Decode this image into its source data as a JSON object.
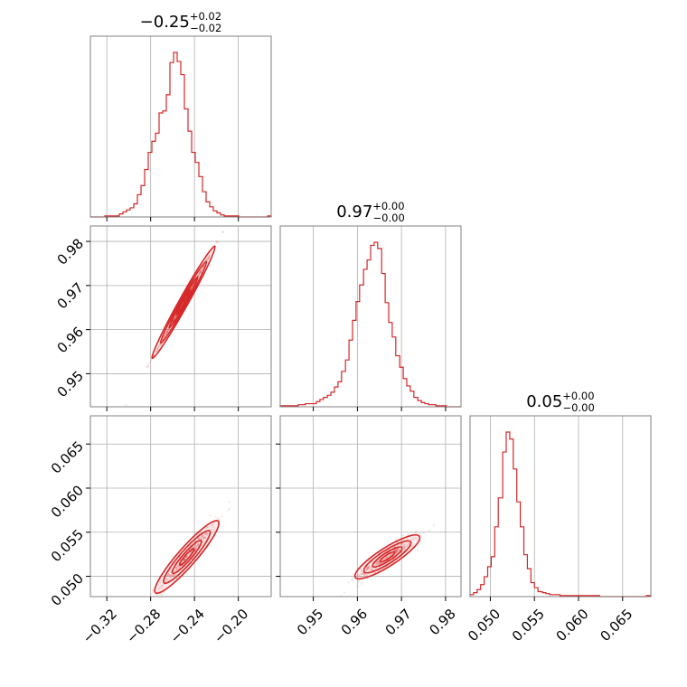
{
  "chart_data": {
    "type": "corner",
    "color": "#d62728",
    "parameters": [
      {
        "median": -0.25,
        "plus": 0.02,
        "minus": 0.02,
        "title_main": "−0.25",
        "title_sup": "+0.02",
        "title_sub": "−0.02",
        "range": [
          -0.335,
          -0.17
        ],
        "ticks": [
          -0.32,
          -0.28,
          -0.24,
          -0.2
        ],
        "tick_labels": [
          "−0.32",
          "−0.28",
          "−0.24",
          "−0.20"
        ],
        "sigma": 0.013
      },
      {
        "median": 0.966,
        "plus": 0.0,
        "minus": 0.0,
        "title_main": "0.97",
        "title_sup": "+0.00",
        "title_sub": "−0.00",
        "range": [
          0.9425,
          0.9835
        ],
        "ticks": [
          0.95,
          0.96,
          0.97,
          0.98
        ],
        "tick_labels": [
          "0.95",
          "0.96",
          "0.97",
          "0.98"
        ],
        "sigma": 0.0033
      },
      {
        "median": 0.0522,
        "plus": 0.0,
        "minus": 0.0,
        "title_main": "0.05",
        "title_sup": "+0.00",
        "title_sub": "−0.00",
        "range": [
          0.0477,
          0.0682
        ],
        "ticks": [
          0.05,
          0.055,
          0.06,
          0.065
        ],
        "tick_labels": [
          "0.050",
          "0.055",
          "0.060",
          "0.065"
        ],
        "sigma": 0.0011
      }
    ],
    "hist1d": [
      {
        "bins": [
          -0.335,
          -0.3317,
          -0.3284,
          -0.3251,
          -0.3218,
          -0.3185,
          -0.3152,
          -0.3119,
          -0.3086,
          -0.3053,
          -0.302,
          -0.2987,
          -0.2954,
          -0.2921,
          -0.2888,
          -0.2855,
          -0.2822,
          -0.2789,
          -0.2756,
          -0.2723,
          -0.269,
          -0.2657,
          -0.2624,
          -0.2591,
          -0.2558,
          -0.2525,
          -0.2492,
          -0.2459,
          -0.2426,
          -0.2393,
          -0.236,
          -0.2327,
          -0.2294,
          -0.2261,
          -0.2228,
          -0.2195,
          -0.2162,
          -0.2129,
          -0.2096,
          -0.2063,
          -0.203,
          -0.1997,
          -0.1964,
          -0.1931,
          -0.1898,
          -0.1865,
          -0.1832,
          -0.1799,
          -0.1766,
          -0.1733,
          -0.17
        ],
        "counts": [
          0,
          0,
          0,
          0,
          1,
          1,
          1,
          1,
          3,
          5,
          7,
          9,
          13,
          22,
          31,
          47,
          64,
          75,
          83,
          103,
          105,
          121,
          153,
          163,
          154,
          141,
          107,
          85,
          64,
          54,
          40,
          25,
          15,
          10,
          6,
          4,
          2,
          1,
          1,
          1,
          1,
          0,
          0,
          0,
          0,
          0,
          0,
          0,
          0,
          1
        ]
      },
      {
        "bins": [
          0.9425,
          0.9433,
          0.9441,
          0.945,
          0.9458,
          0.9466,
          0.9474,
          0.9482,
          0.9491,
          0.9499,
          0.9507,
          0.9515,
          0.9523,
          0.9532,
          0.954,
          0.9548,
          0.9556,
          0.9564,
          0.9573,
          0.9581,
          0.9589,
          0.9597,
          0.9605,
          0.9614,
          0.9622,
          0.963,
          0.9638,
          0.9646,
          0.9655,
          0.9663,
          0.9671,
          0.9679,
          0.9687,
          0.9696,
          0.9704,
          0.9712,
          0.972,
          0.9728,
          0.9737,
          0.9745,
          0.9753,
          0.9761,
          0.9769,
          0.9778,
          0.9786,
          0.9794,
          0.9802,
          0.981,
          0.9819,
          0.9827,
          0.9835
        ],
        "counts": [
          1,
          1,
          1,
          1,
          1,
          2,
          2,
          3,
          3,
          3,
          5,
          7,
          9,
          11,
          14,
          19,
          24,
          34,
          45,
          64,
          83,
          101,
          117,
          132,
          141,
          155,
          158,
          152,
          128,
          100,
          81,
          67,
          49,
          38,
          27,
          20,
          15,
          9,
          6,
          4,
          3,
          2,
          2,
          1,
          1,
          1,
          0,
          0,
          0,
          0
        ]
      },
      {
        "bins": [
          0.0477,
          0.0481,
          0.0485,
          0.0489,
          0.0493,
          0.0497,
          0.0501,
          0.0505,
          0.0509,
          0.0514,
          0.0518,
          0.0522,
          0.0526,
          0.053,
          0.0534,
          0.0538,
          0.0542,
          0.0546,
          0.055,
          0.0554,
          0.0559,
          0.0563,
          0.0567,
          0.0571,
          0.0575,
          0.0579,
          0.0583,
          0.0587,
          0.0591,
          0.0595,
          0.06,
          0.0604,
          0.0608,
          0.0612,
          0.0616,
          0.062,
          0.0624,
          0.0628,
          0.0632,
          0.0636,
          0.0641,
          0.0645,
          0.0649,
          0.0653,
          0.0657,
          0.0661,
          0.0665,
          0.0669,
          0.0673,
          0.0677,
          0.0682
        ],
        "counts": [
          2,
          4,
          7,
          12,
          20,
          30,
          40,
          70,
          99,
          145,
          165,
          158,
          128,
          95,
          70,
          42,
          28,
          14,
          9,
          5,
          4,
          3,
          2,
          2,
          2,
          1,
          1,
          1,
          1,
          1,
          1,
          1,
          1,
          1,
          1,
          1,
          0,
          0,
          0,
          0,
          0,
          0,
          0,
          0,
          0,
          0,
          0,
          0,
          0,
          1
        ]
      }
    ],
    "pairs": [
      {
        "x_param": 0,
        "y_param": 1,
        "row": 1,
        "col": 0,
        "slope": 0.445,
        "x_center": -0.25,
        "y_center": 0.9662,
        "perp_sigma": 0.0002,
        "x_extent": [
          -0.32,
          -0.195
        ],
        "contours": true
      },
      {
        "x_param": 0,
        "y_param": 2,
        "row": 2,
        "col": 0,
        "slope": 0.142,
        "x_center": -0.247,
        "y_center": 0.0522,
        "perp_sigma": 0.0005,
        "x_extent": [
          -0.33,
          -0.2
        ],
        "contours": true
      },
      {
        "x_param": 1,
        "y_param": 2,
        "row": 2,
        "col": 1,
        "slope": 0.32,
        "x_center": 0.9668,
        "y_center": 0.0522,
        "perp_sigma": 0.0005,
        "x_extent": [
          0.943,
          0.98
        ],
        "contours": true
      }
    ],
    "grid": true,
    "title": "",
    "xlabel": "",
    "ylabel": ""
  }
}
